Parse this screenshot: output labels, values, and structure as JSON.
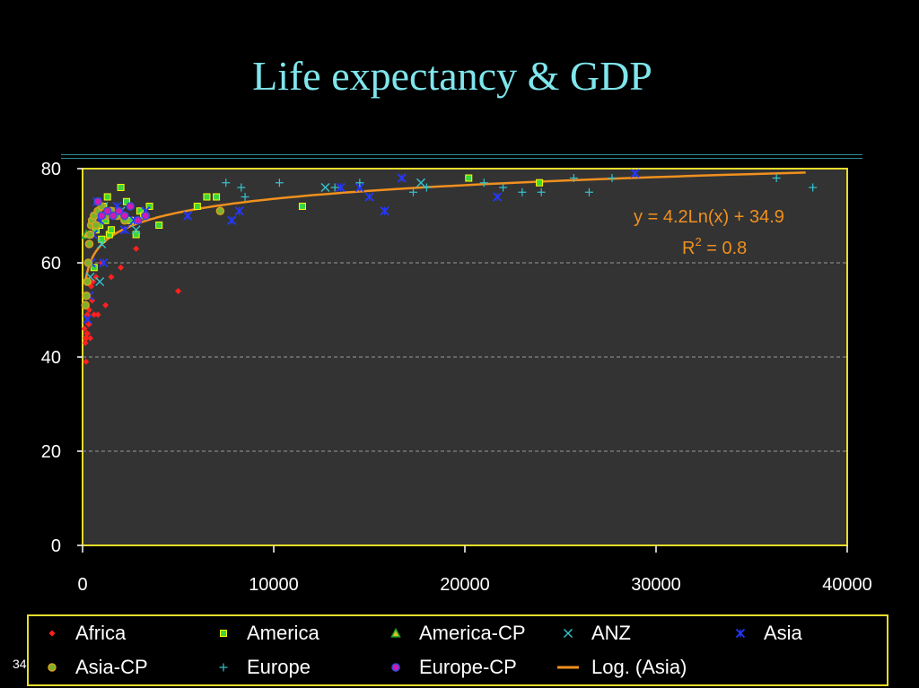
{
  "slide": {
    "title": "Life expectancy & GDP",
    "page_number": "34"
  },
  "colors": {
    "background": "#000000",
    "title": "#7fe6ec",
    "plot_area": "#333333",
    "plot_border": "#e8dc2a",
    "trendline": "#f0901e",
    "annotation": "#f0901e"
  },
  "chart_data": {
    "type": "scatter",
    "title": "",
    "xlabel": "",
    "ylabel": "",
    "xlim": [
      0,
      40000
    ],
    "ylim": [
      0,
      80
    ],
    "x_ticks": [
      0,
      10000,
      20000,
      30000,
      40000
    ],
    "y_ticks": [
      0,
      20,
      40,
      60,
      80
    ],
    "grid": "horizontal dashed",
    "legend": "bottom",
    "annotations": [
      "y = 4.2Ln(x) + 34.9",
      "R",
      "2",
      " = 0.8"
    ],
    "series": [
      {
        "name": "Africa",
        "color": "#ff2020",
        "marker": "diamond",
        "x": [
          100,
          150,
          180,
          200,
          220,
          250,
          300,
          350,
          400,
          450,
          500,
          550,
          600,
          700,
          800,
          1000,
          1200,
          1500,
          2000,
          2800,
          5000,
          160,
          260,
          340
        ],
        "y": [
          46,
          43,
          39,
          44,
          45,
          49,
          47,
          50,
          44,
          55,
          52,
          56,
          49,
          57,
          49,
          60,
          51,
          57,
          59,
          63,
          54,
          44,
          45,
          47
        ]
      },
      {
        "name": "America",
        "color": "#3bd63b",
        "marker": "square",
        "x": [
          600,
          700,
          800,
          900,
          1000,
          1100,
          1200,
          1300,
          1400,
          1600,
          1800,
          2000,
          2300,
          2500,
          2800,
          3000,
          3500,
          4000,
          6000,
          6500,
          7000,
          11500,
          20200,
          23900,
          1500,
          3200
        ],
        "y": [
          59,
          67,
          70,
          68,
          65,
          72,
          69,
          74,
          66,
          71,
          70,
          76,
          73,
          69,
          66,
          71,
          72,
          68,
          72,
          74,
          74,
          72,
          78,
          77,
          67,
          70
        ]
      },
      {
        "name": "America-CP",
        "color": "#22a52b",
        "marker": "triangle",
        "x": [
          200
        ],
        "y": [
          66
        ]
      },
      {
        "name": "ANZ",
        "color": "#36c4cf",
        "marker": "x",
        "x": [
          400,
          900,
          1000,
          1100,
          2000,
          2800,
          12700,
          17700
        ],
        "y": [
          57,
          56,
          64,
          72,
          71,
          67,
          76,
          77
        ]
      },
      {
        "name": "Asia",
        "color": "#2438ff",
        "marker": "asterisk",
        "x": [
          250,
          350,
          450,
          550,
          650,
          750,
          900,
          1100,
          1400,
          1800,
          2200,
          2700,
          3300,
          5500,
          7800,
          8200,
          13500,
          14500,
          15000,
          15800,
          16700,
          21700,
          28900
        ],
        "y": [
          48,
          53,
          60,
          66,
          70,
          73,
          69,
          60,
          70,
          72,
          67,
          69,
          71,
          70,
          69,
          71,
          76,
          76,
          74,
          71,
          78,
          74,
          79
        ]
      },
      {
        "name": "Asia-CP",
        "color": "#7bb22c",
        "marker": "circle",
        "x": [
          150,
          200,
          250,
          300,
          350,
          400,
          450,
          500,
          600,
          700,
          800,
          1000,
          1200,
          1500,
          1800,
          2200,
          7200
        ],
        "y": [
          51,
          53,
          56,
          60,
          64,
          66,
          68,
          69,
          70,
          68,
          71,
          72,
          70,
          71,
          70,
          69,
          71
        ]
      },
      {
        "name": "Europe",
        "color": "#36c4cf",
        "marker": "plus",
        "x": [
          7500,
          8300,
          8500,
          10300,
          13200,
          14500,
          17300,
          18000,
          21000,
          22000,
          23000,
          24000,
          25700,
          26500,
          27700,
          36300,
          38200
        ],
        "y": [
          77,
          76,
          74,
          77,
          76,
          77,
          75,
          76,
          77,
          76,
          75,
          75,
          78,
          75,
          78,
          78,
          76
        ]
      },
      {
        "name": "Europe-CP",
        "color": "#d41ab4",
        "marker": "circle",
        "x": [
          800,
          1000,
          1300,
          1600,
          1900,
          2200,
          2500,
          2900,
          3300
        ],
        "y": [
          73,
          70,
          71,
          70,
          71,
          70,
          72,
          69,
          70
        ]
      },
      {
        "name": "Log. (Asia)",
        "color": "#f0901e",
        "marker": "line",
        "x": [],
        "y": []
      }
    ]
  }
}
